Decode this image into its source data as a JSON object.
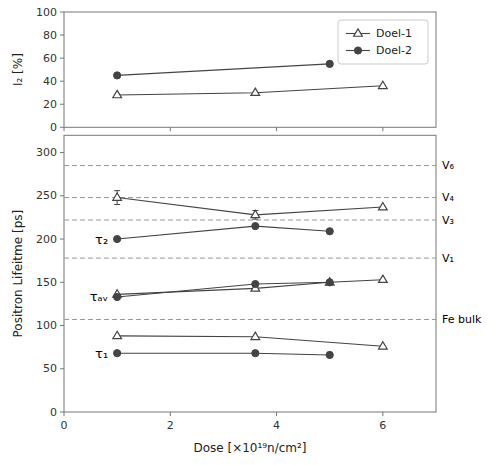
{
  "chart_data": [
    {
      "type": "line",
      "ylabel": "I₂ [%]",
      "xlim": [
        0,
        7
      ],
      "xticks": [
        0,
        2,
        4,
        6
      ],
      "ylim": [
        0,
        100
      ],
      "yticks": [
        0,
        20,
        40,
        60,
        80,
        100
      ],
      "tick_labels": "y",
      "grid": false,
      "legend": "upper right",
      "series": [
        {
          "name": "Doel-1",
          "color": "#444444",
          "marker": "triangle-open",
          "x": [
            1.0,
            3.6,
            6.0
          ],
          "values": [
            28,
            30,
            36
          ]
        },
        {
          "name": "Doel-2",
          "color": "#444444",
          "marker": "circle",
          "x": [
            1.0,
            5.0
          ],
          "values": [
            45,
            55
          ]
        }
      ]
    },
    {
      "type": "line",
      "xlabel": "Dose [×10¹⁹n/cm²]",
      "ylabel": "Positron Lifeitme [ps]",
      "xlim": [
        0,
        7
      ],
      "xticks": [
        0,
        2,
        4,
        6
      ],
      "ylim": [
        0,
        320
      ],
      "yticks": [
        0,
        50,
        100,
        150,
        200,
        250,
        300
      ],
      "grid": false,
      "hlines": [
        {
          "value": 285,
          "label": "V₆"
        },
        {
          "value": 248,
          "label": "V₄"
        },
        {
          "value": 222,
          "label": "V₃"
        },
        {
          "value": 178,
          "label": "V₁"
        },
        {
          "value": 107,
          "label": "Fe bulk"
        }
      ],
      "annotations": [
        "τ₂",
        "τₐᵥ",
        "τ₁"
      ],
      "series": [
        {
          "color": "#444444",
          "marker": "triangle-open",
          "x": [
            1.0,
            3.6,
            6.0
          ],
          "values": [
            248,
            228,
            237
          ],
          "errors": [
            8,
            5,
            0
          ]
        },
        {
          "color": "#444444",
          "marker": "circle",
          "x": [
            1.0,
            3.6,
            5.0
          ],
          "values": [
            200,
            215,
            209
          ]
        },
        {
          "color": "#444444",
          "marker": "triangle-open",
          "x": [
            1.0,
            3.6,
            5.0,
            6.0
          ],
          "values": [
            136,
            143,
            150,
            153
          ]
        },
        {
          "color": "#444444",
          "marker": "circle",
          "x": [
            1.0,
            3.6,
            5.0
          ],
          "values": [
            133,
            148,
            150
          ]
        },
        {
          "color": "#444444",
          "marker": "triangle-open",
          "x": [
            1.0,
            3.6,
            6.0
          ],
          "values": [
            88,
            87,
            76
          ]
        },
        {
          "color": "#444444",
          "marker": "circle",
          "x": [
            1.0,
            3.6,
            5.0
          ],
          "values": [
            68,
            68,
            66
          ]
        }
      ]
    }
  ]
}
